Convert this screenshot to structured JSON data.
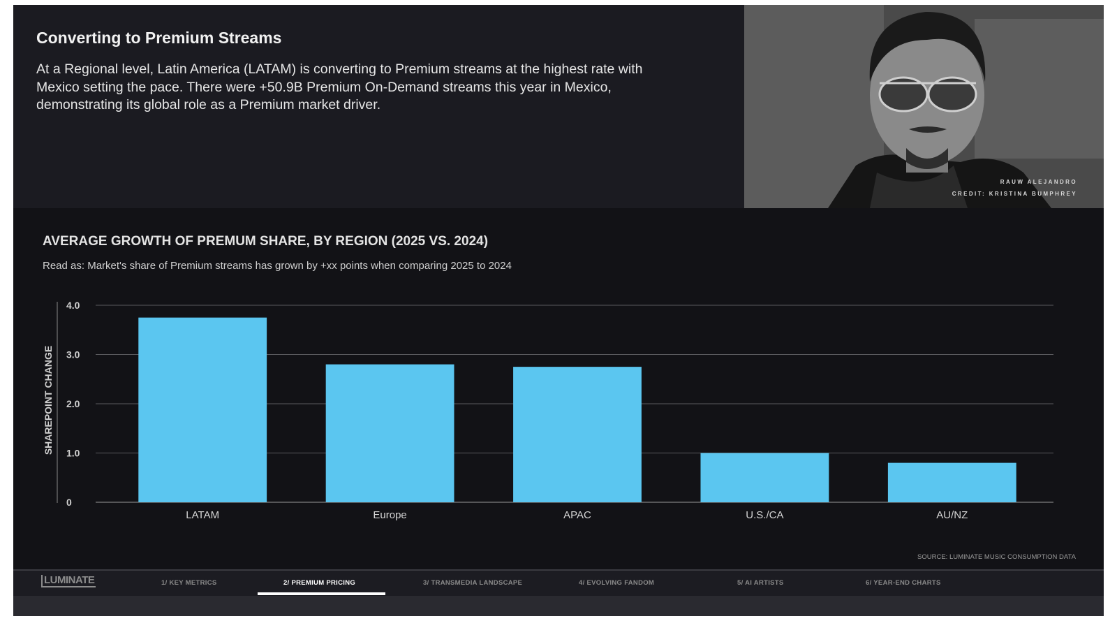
{
  "header": {
    "title": "Converting to Premium Streams",
    "body": "At a Regional level, Latin America (LATAM) is converting to Premium streams at the highest rate with Mexico setting the pace. There were +50.9B Premium On-Demand streams this year in Mexico, demonstrating its global role as a Premium market driver."
  },
  "photo": {
    "caption_name": "RAUW ALEJANDRO",
    "caption_credit": "CREDIT: KRISTINA BUMPHREY"
  },
  "chart_data": {
    "type": "bar",
    "title": "AVERAGE GROWTH OF PREMUM SHARE, BY REGION (2025 VS. 2024)",
    "subtitle": "Read as: Market's share of Premium streams has grown by +xx points when comparing 2025 to 2024",
    "xlabel": "",
    "ylabel": "SHAREPOINT CHANGE",
    "categories": [
      "LATAM",
      "Europe",
      "APAC",
      "U.S./CA",
      "AU/NZ"
    ],
    "values": [
      3.75,
      2.8,
      2.75,
      1.0,
      0.8
    ],
    "ylim": [
      0,
      4.0
    ],
    "yticks": [
      0,
      1.0,
      2.0,
      3.0,
      4.0
    ],
    "ytick_labels": [
      "0",
      "1.0",
      "2.0",
      "3.0",
      "4.0"
    ],
    "grid": true,
    "bar_color": "#5bc6f0"
  },
  "source": "SOURCE: LUMINATE MUSIC CONSUMPTION DATA",
  "nav": {
    "logo": "LUMINATE",
    "items": [
      {
        "label": "1/ KEY METRICS"
      },
      {
        "label": "2/ PREMIUM PRICING",
        "active": true
      },
      {
        "label": "3/ TRANSMEDIA LANDSCAPE"
      },
      {
        "label": "4/ EVOLVING FANDOM"
      },
      {
        "label": "5/ AI ARTISTS"
      },
      {
        "label": "6/ YEAR-END CHARTS"
      }
    ]
  }
}
